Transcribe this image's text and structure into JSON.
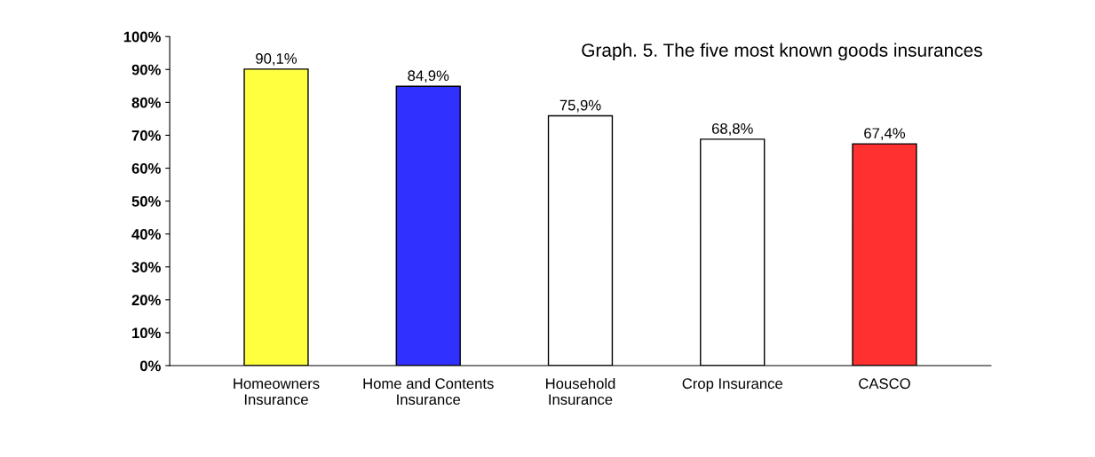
{
  "chart_data": {
    "type": "bar",
    "title": "Graph. 5. The five most known goods insurances",
    "categories": [
      "Homeowners\nInsurance",
      "Home and Contents\nInsurance",
      "Household\nInsurance",
      "Crop Insurance",
      "CASCO"
    ],
    "values": [
      90.1,
      84.9,
      75.9,
      68.8,
      67.4
    ],
    "colors": [
      "#ffff40",
      "#3030ff",
      "#ffffff",
      "#ffffff",
      "#ff3030"
    ],
    "value_labels": [
      "90,1%",
      "84,9%",
      "75,9%",
      "68,8%",
      "67,4%"
    ],
    "ylim": [
      0,
      100
    ],
    "yticks": [
      {
        "value": 0,
        "label": "0%"
      },
      {
        "value": 10,
        "label": "10%"
      },
      {
        "value": 20,
        "label": "20%"
      },
      {
        "value": 30,
        "label": "30%"
      },
      {
        "value": 40,
        "label": "40%"
      },
      {
        "value": 50,
        "label": "50%"
      },
      {
        "value": 60,
        "label": "60%"
      },
      {
        "value": 70,
        "label": "70%"
      },
      {
        "value": 80,
        "label": "80%"
      },
      {
        "value": 90,
        "label": "90%"
      },
      {
        "value": 100,
        "label": "100%"
      }
    ],
    "grid": false,
    "legend": false
  }
}
